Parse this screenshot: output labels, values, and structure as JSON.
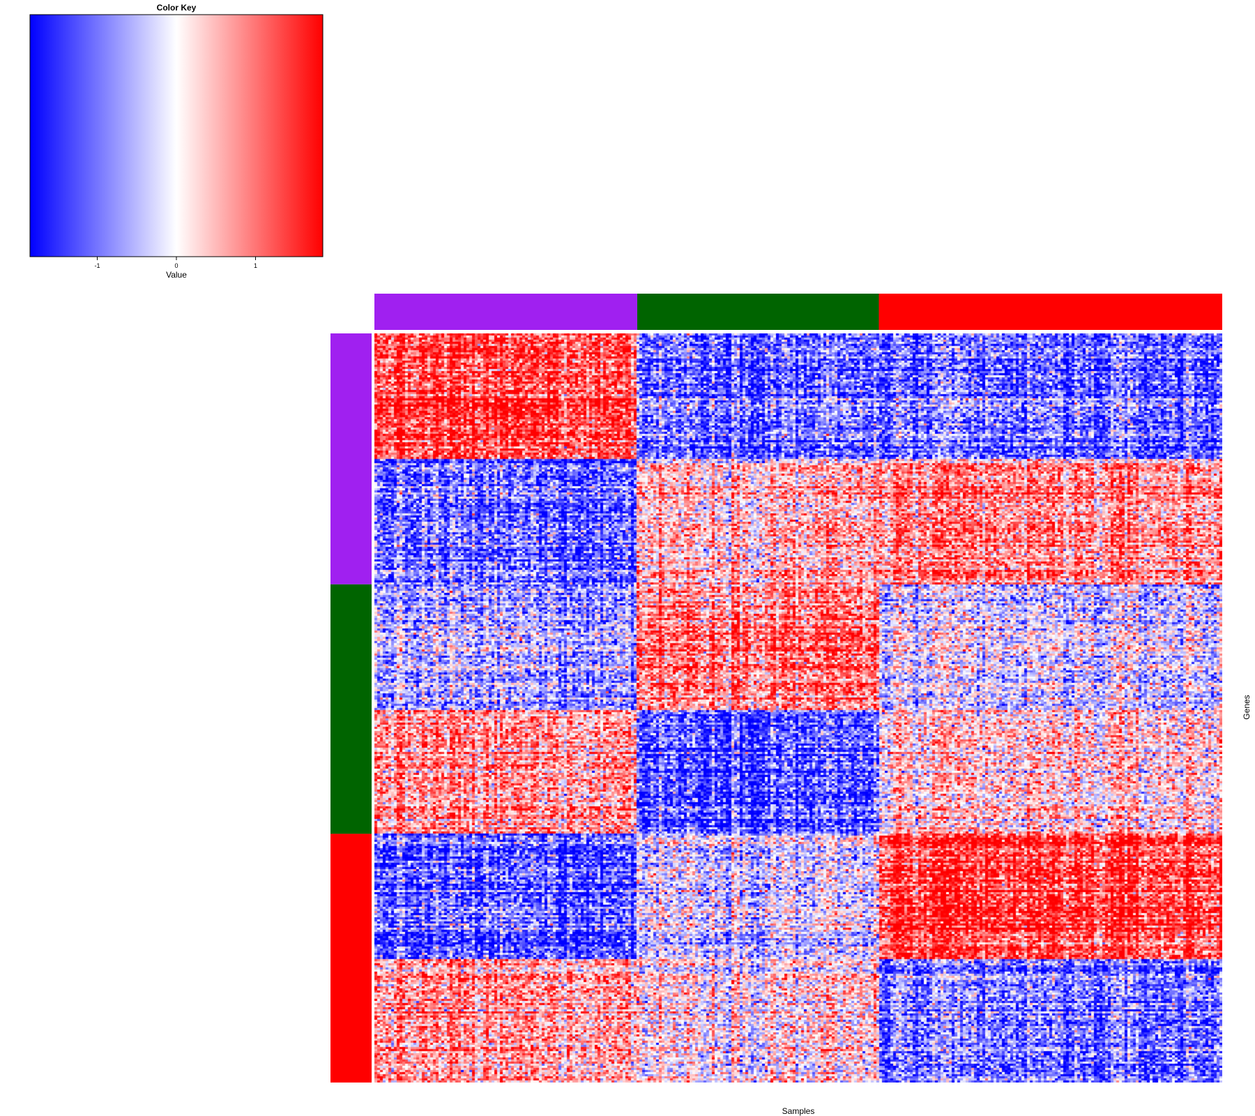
{
  "chart_data": {
    "type": "heatmap",
    "title": "",
    "xlabel": "Samples",
    "ylabel": "Genes",
    "color_key": {
      "title": "Color Key",
      "label": "Value",
      "ticks": [
        "-1",
        "0",
        "1"
      ],
      "tick_values": [
        -1,
        0,
        1
      ],
      "range": [
        -1.85,
        1.85
      ],
      "low_color": "#0000ff",
      "mid_color": "#ffffff",
      "high_color": "#ff0000"
    },
    "column_groups": [
      {
        "color": "#a020f0",
        "share": 0.31
      },
      {
        "color": "#006400",
        "share": 0.285
      },
      {
        "color": "#ff0000",
        "share": 0.405
      }
    ],
    "row_groups": [
      {
        "color": "#a020f0",
        "share": 0.335
      },
      {
        "color": "#006400",
        "share": 0.333
      },
      {
        "color": "#ff0000",
        "share": 0.332
      }
    ],
    "row_blocks": [
      {
        "share": 0.167,
        "mean_by_column_group": [
          1.4,
          -1.0,
          -1.1
        ]
      },
      {
        "share": 0.168,
        "mean_by_column_group": [
          -1.1,
          0.5,
          0.8
        ]
      },
      {
        "share": 0.167,
        "mean_by_column_group": [
          -0.6,
          1.0,
          -0.3
        ]
      },
      {
        "share": 0.166,
        "mean_by_column_group": [
          0.8,
          -1.2,
          0.3
        ]
      },
      {
        "share": 0.167,
        "mean_by_column_group": [
          -1.2,
          -0.2,
          1.4
        ]
      },
      {
        "share": 0.165,
        "mean_by_column_group": [
          0.7,
          0.2,
          -1.0
        ]
      }
    ]
  }
}
